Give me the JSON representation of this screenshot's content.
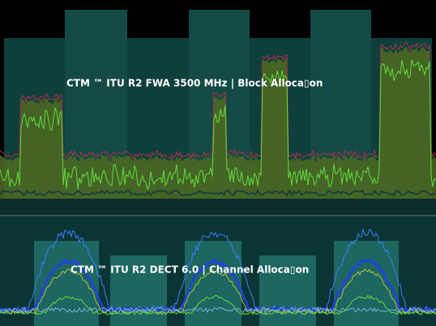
{
  "top_panel": {
    "title": "CTM ™ ITU R2 FWA 3500 MHz | Block Alloca▯on"
  },
  "bottom_panel": {
    "title": "CTM ™ ITU R2 DECT 6.0 | Channel Alloca▯on"
  }
}
